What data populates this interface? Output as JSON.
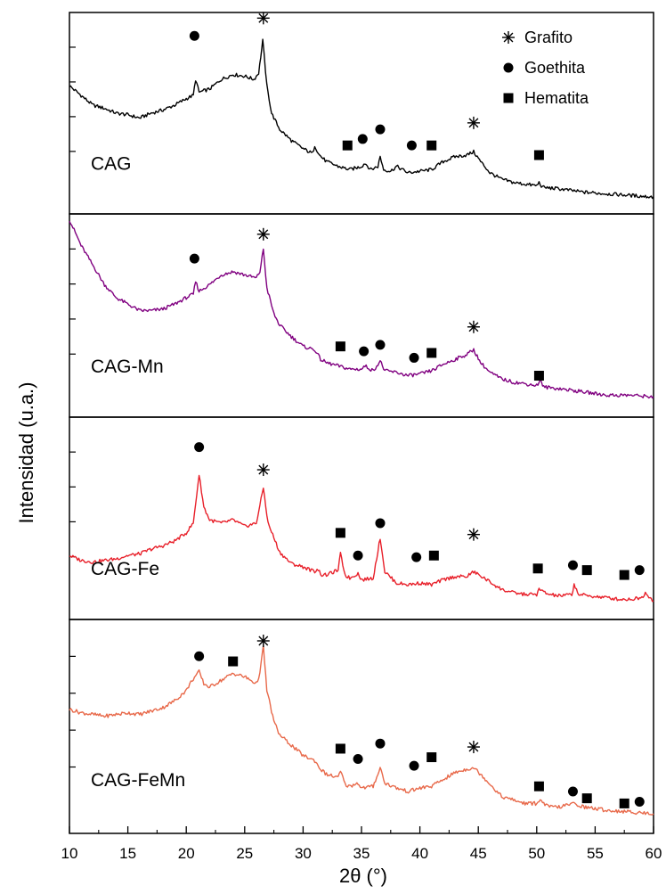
{
  "chart_data": {
    "type": "line",
    "xlabel": "2θ (°)",
    "ylabel": "Intensidad  (u.a.)",
    "xlim": [
      10,
      60
    ],
    "xticks": [
      "10",
      "15",
      "20",
      "25",
      "30",
      "35",
      "40",
      "45",
      "50",
      "55",
      "60"
    ],
    "legend": {
      "placement": "top-right",
      "entries": [
        {
          "marker": "asterisk",
          "label": "Grafito"
        },
        {
          "marker": "circle",
          "label": "Goethita"
        },
        {
          "marker": "square",
          "label": "Hematita"
        }
      ]
    },
    "panels": [
      {
        "label": "CAG",
        "color": "#000000",
        "points": [
          [
            10,
            0.72
          ],
          [
            11,
            0.66
          ],
          [
            12,
            0.6
          ],
          [
            13,
            0.58
          ],
          [
            14,
            0.55
          ],
          [
            15,
            0.54
          ],
          [
            16,
            0.52
          ],
          [
            17,
            0.55
          ],
          [
            18,
            0.57
          ],
          [
            19,
            0.6
          ],
          [
            20,
            0.64
          ],
          [
            20.6,
            0.66
          ],
          [
            20.8,
            0.76
          ],
          [
            21.1,
            0.68
          ],
          [
            22,
            0.7
          ],
          [
            23,
            0.76
          ],
          [
            24,
            0.79
          ],
          [
            25,
            0.78
          ],
          [
            25.8,
            0.76
          ],
          [
            26.2,
            0.8
          ],
          [
            26.55,
            1.0
          ],
          [
            26.9,
            0.72
          ],
          [
            27.3,
            0.55
          ],
          [
            28,
            0.45
          ],
          [
            29,
            0.38
          ],
          [
            30,
            0.33
          ],
          [
            30.8,
            0.3
          ],
          [
            31,
            0.35
          ],
          [
            31.4,
            0.29
          ],
          [
            32,
            0.25
          ],
          [
            33,
            0.22
          ],
          [
            34,
            0.2
          ],
          [
            35,
            0.22
          ],
          [
            35.3,
            0.24
          ],
          [
            35.8,
            0.2
          ],
          [
            36.4,
            0.22
          ],
          [
            36.6,
            0.28
          ],
          [
            36.9,
            0.2
          ],
          [
            37.5,
            0.19
          ],
          [
            38,
            0.22
          ],
          [
            39,
            0.18
          ],
          [
            40,
            0.19
          ],
          [
            41,
            0.2
          ],
          [
            42,
            0.25
          ],
          [
            43,
            0.28
          ],
          [
            44,
            0.29
          ],
          [
            44.6,
            0.31
          ],
          [
            45.2,
            0.25
          ],
          [
            46,
            0.18
          ],
          [
            47,
            0.14
          ],
          [
            48,
            0.12
          ],
          [
            49,
            0.11
          ],
          [
            50,
            0.1
          ],
          [
            50.2,
            0.12
          ],
          [
            50.5,
            0.09
          ],
          [
            52,
            0.08
          ],
          [
            54,
            0.06
          ],
          [
            56,
            0.05
          ],
          [
            58,
            0.04
          ],
          [
            60,
            0.03
          ]
        ],
        "markers": [
          {
            "type": "circle",
            "x": 20.7,
            "y": 1.03
          },
          {
            "type": "asterisk",
            "x": 26.6,
            "y": 1.14
          },
          {
            "type": "square",
            "x": 33.8,
            "y": 0.35
          },
          {
            "type": "circle",
            "x": 35.1,
            "y": 0.39
          },
          {
            "type": "circle",
            "x": 36.6,
            "y": 0.45
          },
          {
            "type": "circle",
            "x": 39.3,
            "y": 0.35
          },
          {
            "type": "square",
            "x": 41.0,
            "y": 0.35
          },
          {
            "type": "asterisk",
            "x": 44.6,
            "y": 0.49
          },
          {
            "type": "square",
            "x": 50.2,
            "y": 0.29
          }
        ]
      },
      {
        "label": "CAG-Mn",
        "color": "#800080",
        "points": [
          [
            10,
            1.14
          ],
          [
            11,
            0.98
          ],
          [
            12,
            0.86
          ],
          [
            13,
            0.74
          ],
          [
            14,
            0.66
          ],
          [
            15,
            0.62
          ],
          [
            16,
            0.58
          ],
          [
            17,
            0.58
          ],
          [
            18,
            0.59
          ],
          [
            19,
            0.62
          ],
          [
            20,
            0.66
          ],
          [
            20.6,
            0.68
          ],
          [
            20.8,
            0.76
          ],
          [
            21.1,
            0.7
          ],
          [
            22,
            0.74
          ],
          [
            23,
            0.8
          ],
          [
            24,
            0.82
          ],
          [
            25,
            0.8
          ],
          [
            26,
            0.78
          ],
          [
            26.3,
            0.82
          ],
          [
            26.6,
            0.96
          ],
          [
            26.9,
            0.72
          ],
          [
            27.5,
            0.56
          ],
          [
            28,
            0.49
          ],
          [
            29,
            0.42
          ],
          [
            30,
            0.36
          ],
          [
            31,
            0.34
          ],
          [
            31.5,
            0.28
          ],
          [
            32,
            0.26
          ],
          [
            33,
            0.24
          ],
          [
            34,
            0.22
          ],
          [
            35,
            0.22
          ],
          [
            35.3,
            0.24
          ],
          [
            36,
            0.21
          ],
          [
            36.6,
            0.27
          ],
          [
            37,
            0.21
          ],
          [
            38,
            0.2
          ],
          [
            39,
            0.18
          ],
          [
            40,
            0.19
          ],
          [
            41,
            0.21
          ],
          [
            42,
            0.25
          ],
          [
            43,
            0.28
          ],
          [
            44,
            0.31
          ],
          [
            44.6,
            0.34
          ],
          [
            45.2,
            0.26
          ],
          [
            46,
            0.2
          ],
          [
            47,
            0.16
          ],
          [
            48,
            0.14
          ],
          [
            49,
            0.13
          ],
          [
            50,
            0.12
          ],
          [
            50.3,
            0.15
          ],
          [
            50.6,
            0.11
          ],
          [
            52,
            0.1
          ],
          [
            54,
            0.08
          ],
          [
            56,
            0.06
          ],
          [
            58,
            0.06
          ],
          [
            60,
            0.05
          ]
        ],
        "markers": [
          {
            "type": "circle",
            "x": 20.7,
            "y": 0.9
          },
          {
            "type": "asterisk",
            "x": 26.6,
            "y": 1.05
          },
          {
            "type": "square",
            "x": 33.2,
            "y": 0.36
          },
          {
            "type": "circle",
            "x": 35.2,
            "y": 0.33
          },
          {
            "type": "circle",
            "x": 36.6,
            "y": 0.37
          },
          {
            "type": "circle",
            "x": 39.5,
            "y": 0.29
          },
          {
            "type": "square",
            "x": 41.0,
            "y": 0.32
          },
          {
            "type": "asterisk",
            "x": 44.6,
            "y": 0.48
          },
          {
            "type": "square",
            "x": 50.2,
            "y": 0.18
          }
        ]
      },
      {
        "label": "CAG-Fe",
        "color": "#e8202a",
        "points": [
          [
            10,
            0.32
          ],
          [
            11,
            0.29
          ],
          [
            12,
            0.28
          ],
          [
            13,
            0.29
          ],
          [
            14,
            0.3
          ],
          [
            15,
            0.32
          ],
          [
            16,
            0.33
          ],
          [
            17,
            0.36
          ],
          [
            18,
            0.38
          ],
          [
            19,
            0.41
          ],
          [
            20,
            0.46
          ],
          [
            20.6,
            0.52
          ],
          [
            21.1,
            0.82
          ],
          [
            21.5,
            0.62
          ],
          [
            22,
            0.54
          ],
          [
            23,
            0.52
          ],
          [
            24,
            0.54
          ],
          [
            25,
            0.5
          ],
          [
            26,
            0.52
          ],
          [
            26.6,
            0.74
          ],
          [
            27,
            0.52
          ],
          [
            28,
            0.34
          ],
          [
            29,
            0.27
          ],
          [
            30,
            0.25
          ],
          [
            31,
            0.22
          ],
          [
            31.2,
            0.24
          ],
          [
            31.6,
            0.2
          ],
          [
            32,
            0.2
          ],
          [
            33,
            0.23
          ],
          [
            33.2,
            0.33
          ],
          [
            33.6,
            0.2
          ],
          [
            34,
            0.18
          ],
          [
            34.7,
            0.21
          ],
          [
            35,
            0.17
          ],
          [
            36,
            0.18
          ],
          [
            36.6,
            0.43
          ],
          [
            37,
            0.22
          ],
          [
            38,
            0.15
          ],
          [
            39,
            0.14
          ],
          [
            40,
            0.15
          ],
          [
            41,
            0.14
          ],
          [
            42,
            0.17
          ],
          [
            43,
            0.19
          ],
          [
            44,
            0.19
          ],
          [
            44.6,
            0.22
          ],
          [
            45.5,
            0.18
          ],
          [
            47,
            0.11
          ],
          [
            48,
            0.09
          ],
          [
            49,
            0.08
          ],
          [
            50,
            0.08
          ],
          [
            50.2,
            0.11
          ],
          [
            51,
            0.08
          ],
          [
            52,
            0.07
          ],
          [
            53,
            0.08
          ],
          [
            53.2,
            0.14
          ],
          [
            53.6,
            0.08
          ],
          [
            54.5,
            0.07
          ],
          [
            56,
            0.06
          ],
          [
            57,
            0.05
          ],
          [
            58,
            0.05
          ],
          [
            59,
            0.06
          ],
          [
            59.3,
            0.09
          ],
          [
            60,
            0.04
          ]
        ],
        "markers": [
          {
            "type": "circle",
            "x": 21.1,
            "y": 0.99
          },
          {
            "type": "asterisk",
            "x": 26.6,
            "y": 0.85
          },
          {
            "type": "circle",
            "x": 36.6,
            "y": 0.52
          },
          {
            "type": "square",
            "x": 33.2,
            "y": 0.46
          },
          {
            "type": "circle",
            "x": 34.7,
            "y": 0.32
          },
          {
            "type": "circle",
            "x": 39.7,
            "y": 0.31
          },
          {
            "type": "square",
            "x": 41.2,
            "y": 0.32
          },
          {
            "type": "asterisk",
            "x": 44.6,
            "y": 0.45
          },
          {
            "type": "square",
            "x": 50.1,
            "y": 0.24
          },
          {
            "type": "circle",
            "x": 53.1,
            "y": 0.26
          },
          {
            "type": "square",
            "x": 54.3,
            "y": 0.23
          },
          {
            "type": "square",
            "x": 57.5,
            "y": 0.2
          },
          {
            "type": "circle",
            "x": 58.8,
            "y": 0.23
          }
        ]
      },
      {
        "label": "CAG-FeMn",
        "color": "#e8694a",
        "points": [
          [
            10,
            0.65
          ],
          [
            11,
            0.63
          ],
          [
            12,
            0.62
          ],
          [
            13,
            0.61
          ],
          [
            14,
            0.62
          ],
          [
            15,
            0.63
          ],
          [
            16,
            0.62
          ],
          [
            17,
            0.64
          ],
          [
            18,
            0.66
          ],
          [
            19,
            0.7
          ],
          [
            20,
            0.76
          ],
          [
            20.5,
            0.82
          ],
          [
            21.1,
            0.87
          ],
          [
            21.5,
            0.8
          ],
          [
            22,
            0.78
          ],
          [
            23,
            0.82
          ],
          [
            24,
            0.86
          ],
          [
            25,
            0.84
          ],
          [
            26,
            0.8
          ],
          [
            26.3,
            0.86
          ],
          [
            26.6,
            1.02
          ],
          [
            26.9,
            0.76
          ],
          [
            27.5,
            0.58
          ],
          [
            28,
            0.5
          ],
          [
            29,
            0.44
          ],
          [
            30,
            0.38
          ],
          [
            31,
            0.35
          ],
          [
            31.5,
            0.3
          ],
          [
            32,
            0.27
          ],
          [
            33,
            0.25
          ],
          [
            33.2,
            0.29
          ],
          [
            33.6,
            0.21
          ],
          [
            34,
            0.2
          ],
          [
            34.7,
            0.22
          ],
          [
            35,
            0.19
          ],
          [
            36,
            0.2
          ],
          [
            36.6,
            0.31
          ],
          [
            37,
            0.22
          ],
          [
            38,
            0.19
          ],
          [
            39,
            0.17
          ],
          [
            40,
            0.19
          ],
          [
            41,
            0.2
          ],
          [
            42,
            0.24
          ],
          [
            43,
            0.28
          ],
          [
            44,
            0.3
          ],
          [
            44.6,
            0.31
          ],
          [
            45.5,
            0.25
          ],
          [
            47,
            0.14
          ],
          [
            48,
            0.12
          ],
          [
            49,
            0.1
          ],
          [
            50,
            0.1
          ],
          [
            50.2,
            0.12
          ],
          [
            51,
            0.08
          ],
          [
            52,
            0.08
          ],
          [
            53.2,
            0.1
          ],
          [
            54,
            0.08
          ],
          [
            56,
            0.06
          ],
          [
            58,
            0.05
          ],
          [
            60,
            0.04
          ]
        ],
        "markers": [
          {
            "type": "circle",
            "x": 21.1,
            "y": 0.96
          },
          {
            "type": "square",
            "x": 24.0,
            "y": 0.93
          },
          {
            "type": "asterisk",
            "x": 26.6,
            "y": 1.05
          },
          {
            "type": "square",
            "x": 33.2,
            "y": 0.42
          },
          {
            "type": "circle",
            "x": 34.7,
            "y": 0.36
          },
          {
            "type": "circle",
            "x": 36.6,
            "y": 0.45
          },
          {
            "type": "circle",
            "x": 39.5,
            "y": 0.32
          },
          {
            "type": "square",
            "x": 41.0,
            "y": 0.37
          },
          {
            "type": "asterisk",
            "x": 44.6,
            "y": 0.43
          },
          {
            "type": "square",
            "x": 50.2,
            "y": 0.2
          },
          {
            "type": "circle",
            "x": 53.1,
            "y": 0.17
          },
          {
            "type": "square",
            "x": 54.3,
            "y": 0.13
          },
          {
            "type": "square",
            "x": 57.5,
            "y": 0.1
          },
          {
            "type": "circle",
            "x": 58.8,
            "y": 0.11
          }
        ]
      }
    ]
  }
}
